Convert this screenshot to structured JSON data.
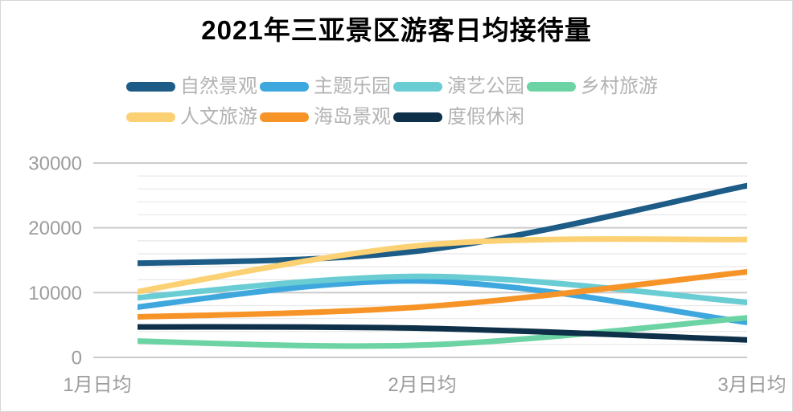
{
  "page": {
    "background": "#ffffff",
    "border_color": "#d6d6d6"
  },
  "chart_data": {
    "type": "line",
    "title": "2021年三亚景区游客日均接待量",
    "categories": [
      "1月日均",
      "2月日均",
      "3月日均"
    ],
    "series": [
      {
        "name": "自然景观",
        "color": "#1c5c87",
        "values": [
          14400,
          16500,
          26500
        ]
      },
      {
        "name": "主题乐园",
        "color": "#3ea7dd",
        "values": [
          7000,
          11800,
          5400
        ]
      },
      {
        "name": "演艺公园",
        "color": "#69cdd3",
        "values": [
          8600,
          12500,
          8500
        ]
      },
      {
        "name": "乡村旅游",
        "color": "#6cd4a4",
        "values": [
          2700,
          1900,
          6100
        ]
      },
      {
        "name": "人文旅游",
        "color": "#fbd173",
        "values": [
          9000,
          17300,
          18200
        ]
      },
      {
        "name": "海岛景观",
        "color": "#f79428",
        "values": [
          6100,
          7800,
          13200
        ]
      },
      {
        "name": "度假休闲",
        "color": "#0f3049",
        "values": [
          4700,
          4500,
          2700
        ]
      }
    ],
    "ylim": [
      0,
      30000
    ],
    "yticks": [
      0,
      10000,
      20000,
      30000
    ],
    "minor_grid_step": 2000,
    "grid": true,
    "smooth": true,
    "legend_position": "top",
    "line_width": 7,
    "style": {
      "title_color": "#000000",
      "axis_label_color": "#9c9c9c",
      "legend_label_color": "#b3b3b3",
      "major_grid_color": "#cbcbcb",
      "minor_grid_color": "#eaeaea"
    }
  }
}
